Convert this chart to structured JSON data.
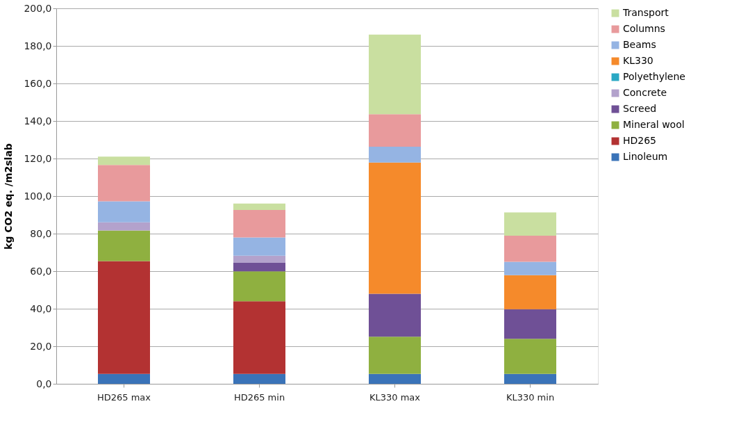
{
  "chart_data": {
    "type": "bar",
    "stacked": true,
    "ylabel": "kg CO2 eq. /m2slab",
    "categories": [
      "HD265 max",
      "HD265 min",
      "KL330 max",
      "KL330 min"
    ],
    "series": [
      {
        "name": "Linoleum",
        "color": "#3a73b8",
        "values": [
          5.3,
          5.3,
          5.3,
          5.3
        ]
      },
      {
        "name": "HD265",
        "color": "#b33232",
        "values": [
          60.1,
          38.7,
          0,
          0
        ]
      },
      {
        "name": "Mineral wool",
        "color": "#8fb040",
        "values": [
          16.3,
          15.9,
          19.8,
          18.7
        ]
      },
      {
        "name": "Screed",
        "color": "#6f5096",
        "values": [
          0,
          4.5,
          22.9,
          15.7
        ]
      },
      {
        "name": "Concrete",
        "color": "#b3a2cc",
        "values": [
          4.3,
          3.8,
          0,
          0
        ]
      },
      {
        "name": "Polyethylene",
        "color": "#2aa8c4",
        "values": [
          0,
          0,
          0,
          0
        ]
      },
      {
        "name": "KL330",
        "color": "#f58a2b",
        "values": [
          0,
          0,
          69.9,
          18.2
        ]
      },
      {
        "name": "Beams",
        "color": "#95b4e3",
        "values": [
          11.2,
          9.8,
          8.4,
          7.1
        ]
      },
      {
        "name": "Columns",
        "color": "#e89a9c",
        "values": [
          19.4,
          14.6,
          17.3,
          13.9
        ]
      },
      {
        "name": "Transport",
        "color": "#c9dfa0",
        "values": [
          4.4,
          3.4,
          42.4,
          12.4
        ]
      }
    ],
    "ylim": [
      0,
      200
    ],
    "yticks": [
      {
        "value": 0,
        "label": "0,0"
      },
      {
        "value": 20,
        "label": "20,0"
      },
      {
        "value": 40,
        "label": "40,0"
      },
      {
        "value": 60,
        "label": "60,0"
      },
      {
        "value": 80,
        "label": "80,0"
      },
      {
        "value": 100,
        "label": "100,0"
      },
      {
        "value": 120,
        "label": "120,0"
      },
      {
        "value": 140,
        "label": "140,0"
      },
      {
        "value": 160,
        "label": "160,0"
      },
      {
        "value": 180,
        "label": "180,0"
      },
      {
        "value": 200,
        "label": "200,0"
      }
    ],
    "grid": "y",
    "legend": "right"
  }
}
